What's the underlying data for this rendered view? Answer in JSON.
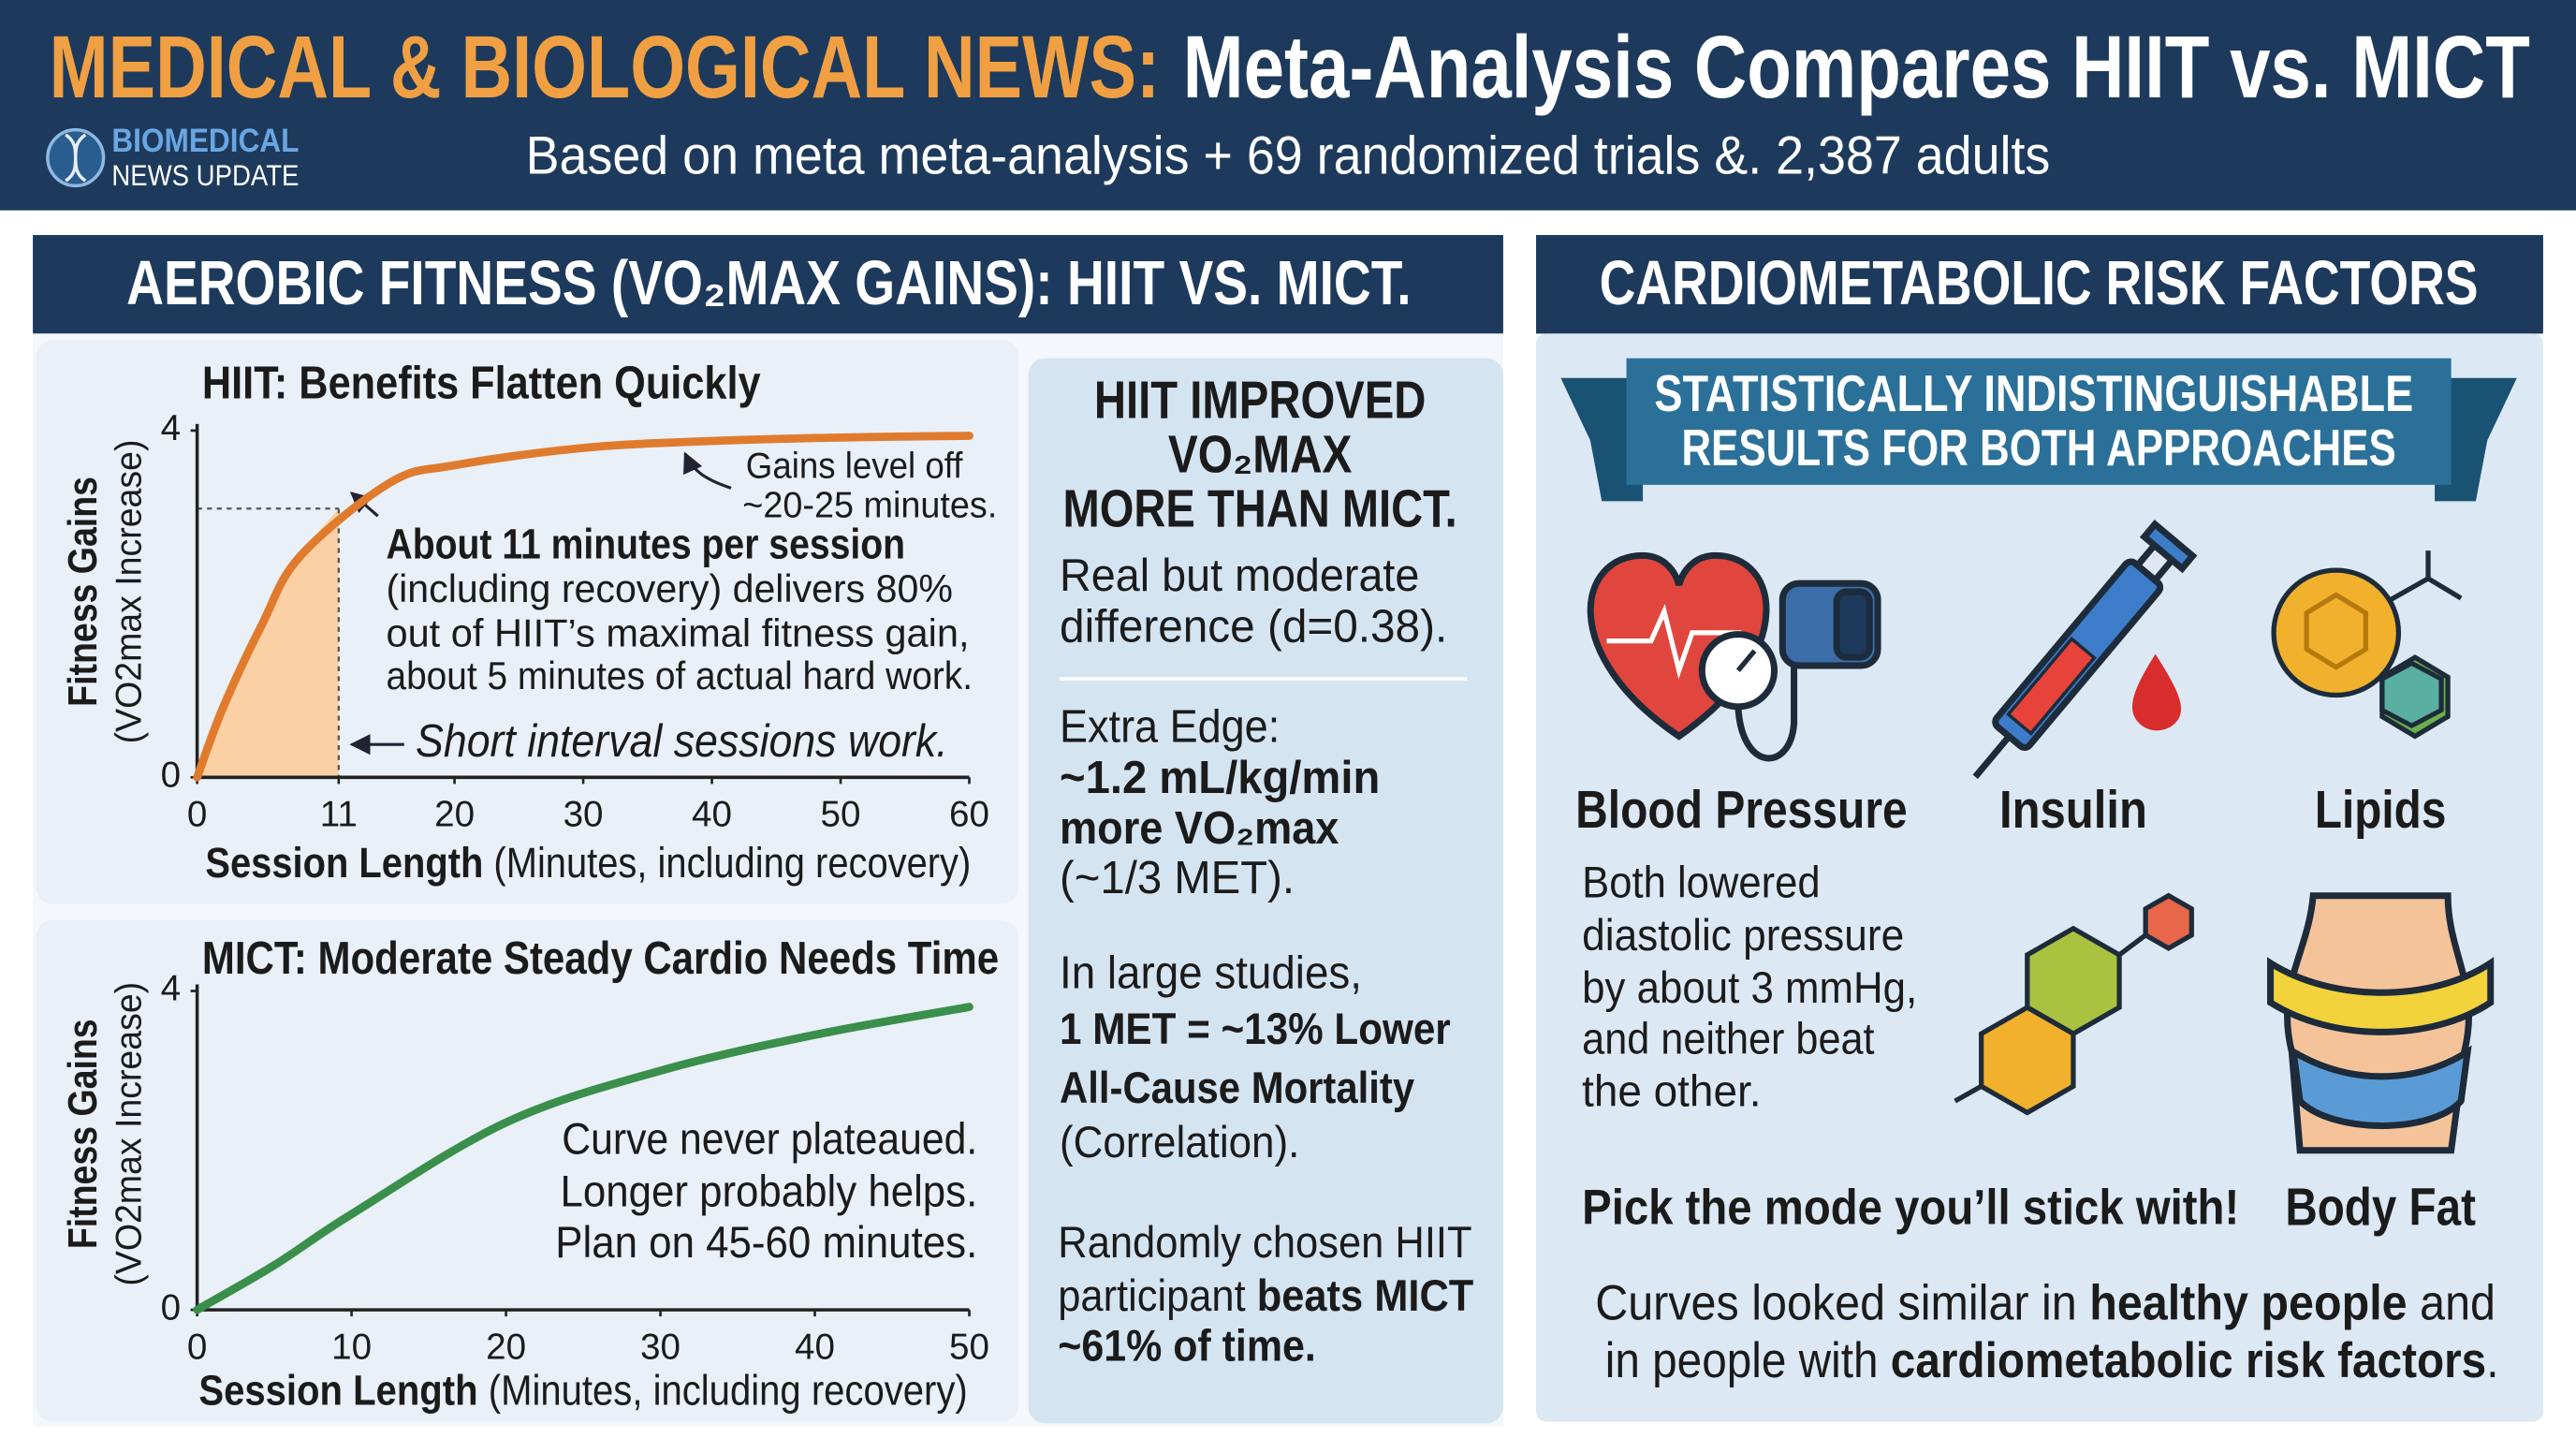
{
  "header": {
    "title_highlight": "MEDICAL & BIOLOGICAL NEWS:",
    "title": "Meta-Analysis Compares HIIT vs. MICT",
    "subtitle": "Based on meta meta-analysis + 69 randomized trials &. 2,387 adults",
    "logo": [
      "BIOMEDICAL",
      "NEWS UPDATE"
    ]
  },
  "aerobic_section": {
    "title": "AEROBIC FITNESS (VO₂MAX GAINS): HIIT VS. MICT."
  },
  "chart_data": [
    {
      "type": "line",
      "title": "HIIT: Benefits Flatten Quickly",
      "y_label": "Fitness Gains",
      "y_label_detail": "(VO2max Increase)",
      "x_label": "Session Length",
      "x_label_detail": "(Minutes, including recovery)",
      "x": [
        0,
        2,
        5,
        8,
        15,
        20,
        30,
        40,
        50,
        60
      ],
      "values": [
        0,
        0.8,
        1.75,
        2.55,
        3.4,
        3.6,
        3.8,
        3.88,
        3.92,
        3.94
      ],
      "color": "#e07b2e",
      "highlight": {
        "x": 11,
        "y": 3.1
      },
      "xlim": [
        0,
        60
      ],
      "xticks": [
        0,
        11,
        20,
        30,
        40,
        50,
        60
      ],
      "ylim": [
        0,
        4
      ],
      "yticks": [
        0,
        4
      ],
      "annotations": {
        "plateau": [
          "Gains level off",
          "~20-25 minutes."
        ],
        "key_point": "About 11 minutes per session",
        "key_detail": [
          "(including recovery) delivers 80%",
          "out of HIIT’s maximal fitness gain,",
          "about 5 minutes of actual hard work."
        ],
        "short": "Short interval sessions work."
      }
    },
    {
      "type": "line",
      "title": "MICT: Moderate Steady Cardio Needs Time",
      "y_label": "Fitness Gains",
      "y_label_detail": "(VO2max Increase)",
      "x_label": "Session Length",
      "x_label_detail": "(Minutes, including recovery)",
      "x": [
        0,
        5,
        10,
        20,
        30,
        40,
        50
      ],
      "values": [
        0,
        0.56,
        1.2,
        2.35,
        3.0,
        3.45,
        3.8
      ],
      "color": "#3a8f4a",
      "xlim": [
        0,
        50
      ],
      "xticks": [
        0,
        10,
        20,
        30,
        40,
        50
      ],
      "ylim": [
        0,
        4
      ],
      "yticks": [
        0,
        4
      ],
      "annotations": {
        "notes": [
          "Curve never plateaued.",
          "Longer probably helps.",
          "Plan on 45-60 minutes."
        ]
      }
    }
  ],
  "findings": {
    "heading": [
      "HIIT IMPROVED",
      "VO₂MAX",
      "MORE THAN MICT."
    ],
    "effect": [
      "Real but moderate",
      "difference (d=0.38)."
    ],
    "edge_label": "Extra Edge:",
    "edge_bold": [
      "~1.2 mL/kg/min",
      "more VO₂max"
    ],
    "edge_note": "(~1/3 MET).",
    "studies_intro": "In large studies,",
    "studies_bold": [
      "1 MET = ~13% Lower",
      "All-Cause Mortality"
    ],
    "studies_note": "(Correlation).",
    "random": [
      "Randomly chosen HIIT",
      "participant "
    ],
    "random_bold": [
      "beats MICT",
      "~61% of time."
    ]
  },
  "risk_section": {
    "title": "CARDIOMETABOLIC RISK FACTORS",
    "banner": [
      "STATISTICALLY INDISTINGUISHABLE",
      "RESULTS FOR BOTH APPROACHES"
    ],
    "factors": [
      "Blood Pressure",
      "Insulin",
      "Lipids",
      "Body Fat"
    ],
    "bp_detail": [
      "Both lowered",
      "diastolic pressure",
      "by about 3 mmHg,",
      "and neither beat",
      "the other."
    ],
    "advice": "Pick the mode you’ll stick with!",
    "footer": [
      [
        "Curves looked similar in ",
        "healthy people",
        " and"
      ],
      [
        "in people with ",
        "cardiometabolic risk factors",
        "."
      ]
    ]
  }
}
